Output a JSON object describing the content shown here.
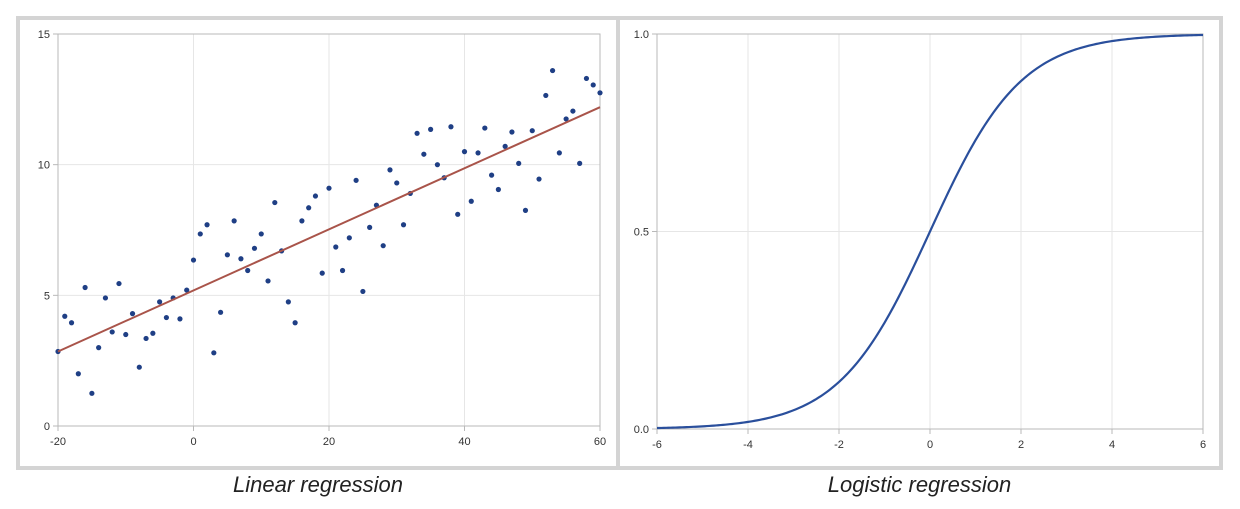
{
  "captions": {
    "left": "Linear regression",
    "right": "Logistic regression"
  },
  "colors": {
    "scatter": "#1f3f85",
    "fit_line": "#a9544a",
    "logistic": "#2a4f9c",
    "grid": "#e6e6e6",
    "axis": "#b9b9b9"
  },
  "chart_data": [
    {
      "type": "scatter",
      "title": "Linear regression",
      "xlabel": "",
      "ylabel": "",
      "xlim": [
        -20,
        60
      ],
      "ylim": [
        0,
        15
      ],
      "x_ticks": [
        -20,
        0,
        20,
        40,
        60
      ],
      "y_ticks": [
        0,
        5,
        10,
        15
      ],
      "grid": true,
      "points": [
        [
          -20,
          2.85
        ],
        [
          -19,
          4.2
        ],
        [
          -18,
          3.95
        ],
        [
          -17,
          2.0
        ],
        [
          -16,
          5.3
        ],
        [
          -15,
          1.25
        ],
        [
          -14,
          3.0
        ],
        [
          -13,
          4.9
        ],
        [
          -12,
          3.6
        ],
        [
          -11,
          5.45
        ],
        [
          -10,
          3.5
        ],
        [
          -9,
          4.3
        ],
        [
          -8,
          2.25
        ],
        [
          -7,
          3.35
        ],
        [
          -6,
          3.55
        ],
        [
          -5,
          4.75
        ],
        [
          -4,
          4.15
        ],
        [
          -3,
          4.9
        ],
        [
          -2,
          4.1
        ],
        [
          -1,
          5.2
        ],
        [
          0,
          6.35
        ],
        [
          1,
          7.35
        ],
        [
          2,
          7.7
        ],
        [
          3,
          2.8
        ],
        [
          4,
          4.35
        ],
        [
          5,
          6.55
        ],
        [
          6,
          7.85
        ],
        [
          7,
          6.4
        ],
        [
          8,
          5.95
        ],
        [
          9,
          6.8
        ],
        [
          10,
          7.35
        ],
        [
          11,
          5.55
        ],
        [
          12,
          8.55
        ],
        [
          13,
          6.7
        ],
        [
          14,
          4.75
        ],
        [
          15,
          3.95
        ],
        [
          16,
          7.85
        ],
        [
          17,
          8.35
        ],
        [
          18,
          8.8
        ],
        [
          19,
          5.85
        ],
        [
          20,
          9.1
        ],
        [
          21,
          6.85
        ],
        [
          22,
          5.95
        ],
        [
          23,
          7.2
        ],
        [
          24,
          9.4
        ],
        [
          25,
          5.15
        ],
        [
          26,
          7.6
        ],
        [
          27,
          8.45
        ],
        [
          28,
          6.9
        ],
        [
          29,
          9.8
        ],
        [
          30,
          9.3
        ],
        [
          31,
          7.7
        ],
        [
          32,
          8.9
        ],
        [
          33,
          11.2
        ],
        [
          34,
          10.4
        ],
        [
          35,
          11.35
        ],
        [
          36,
          10.0
        ],
        [
          37,
          9.5
        ],
        [
          38,
          11.45
        ],
        [
          39,
          8.1
        ],
        [
          40,
          10.5
        ],
        [
          41,
          8.6
        ],
        [
          42,
          10.45
        ],
        [
          43,
          11.4
        ],
        [
          44,
          9.6
        ],
        [
          45,
          9.05
        ],
        [
          46,
          10.7
        ],
        [
          47,
          11.25
        ],
        [
          48,
          10.05
        ],
        [
          49,
          8.25
        ],
        [
          50,
          11.3
        ],
        [
          51,
          9.45
        ],
        [
          52,
          12.65
        ],
        [
          53,
          13.6
        ],
        [
          54,
          10.45
        ],
        [
          55,
          11.75
        ],
        [
          56,
          12.05
        ],
        [
          57,
          10.05
        ],
        [
          58,
          13.3
        ],
        [
          59,
          13.05
        ],
        [
          60,
          12.75
        ]
      ],
      "fit_line": [
        [
          -20,
          2.85
        ],
        [
          60,
          12.2
        ]
      ]
    },
    {
      "type": "line",
      "title": "Logistic regression",
      "xlabel": "",
      "ylabel": "",
      "xlim": [
        -6,
        6
      ],
      "ylim": [
        0,
        1
      ],
      "x_ticks": [
        -6,
        -4,
        -2,
        0,
        2,
        4,
        6
      ],
      "y_ticks": [
        0.0,
        0.5,
        1.0
      ],
      "y_tick_labels": [
        "0.0",
        "0.5",
        "1.0"
      ],
      "grid": true,
      "x": [
        -6,
        -5,
        -4,
        -3,
        -2.5,
        -2,
        -1.5,
        -1,
        -0.5,
        0,
        0.5,
        1,
        1.5,
        2,
        2.5,
        3,
        4,
        5,
        6
      ],
      "y": [
        0.0025,
        0.0067,
        0.018,
        0.047,
        0.076,
        0.119,
        0.182,
        0.269,
        0.378,
        0.5,
        0.622,
        0.731,
        0.818,
        0.881,
        0.924,
        0.953,
        0.982,
        0.9933,
        0.9975
      ]
    }
  ]
}
